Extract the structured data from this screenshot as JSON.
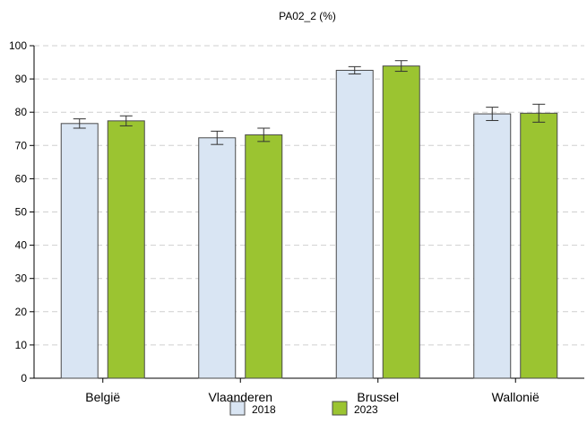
{
  "chart_data": {
    "type": "bar",
    "title": "PA02_2 (%)",
    "xlabel": "",
    "ylabel": "",
    "ylim": [
      0,
      100
    ],
    "yticks": [
      0,
      10,
      20,
      30,
      40,
      50,
      60,
      70,
      80,
      90,
      100
    ],
    "grid": true,
    "legend_position": "bottom",
    "categories": [
      "België",
      "Vlaanderen",
      "Brussel",
      "Wallonië"
    ],
    "series": [
      {
        "name": "2018",
        "color": "#d9e5f3",
        "values": [
          76.6,
          72.3,
          92.6,
          79.5
        ],
        "error_low": [
          75.2,
          70.3,
          91.5,
          77.5
        ],
        "error_high": [
          78.0,
          74.3,
          93.7,
          81.5
        ]
      },
      {
        "name": "2023",
        "color": "#9bc431",
        "values": [
          77.4,
          73.2,
          93.9,
          79.7
        ],
        "error_low": [
          75.9,
          71.2,
          92.3,
          77.0
        ],
        "error_high": [
          78.9,
          75.2,
          95.5,
          82.4
        ]
      }
    ]
  }
}
